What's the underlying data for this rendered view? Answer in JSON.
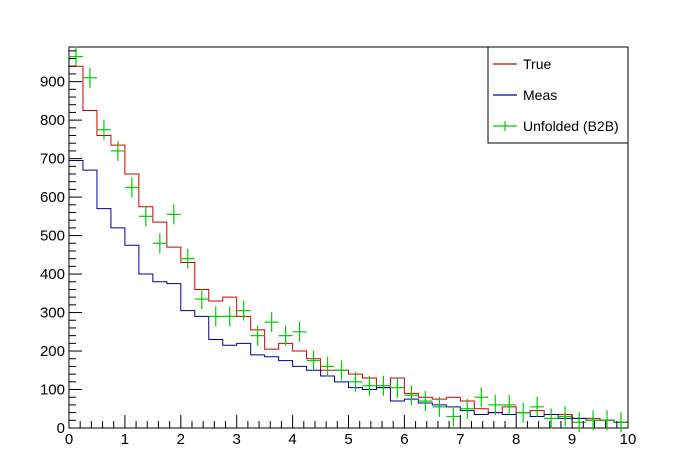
{
  "chart_data": {
    "type": "histogram",
    "xlim": [
      0,
      10
    ],
    "ylim": [
      0,
      990
    ],
    "x_ticks": [
      "0",
      "1",
      "2",
      "3",
      "4",
      "5",
      "6",
      "7",
      "8",
      "9",
      "10"
    ],
    "y_ticks": [
      "0",
      "100",
      "200",
      "300",
      "400",
      "500",
      "600",
      "700",
      "800",
      "900"
    ],
    "y_tick_values": [
      0,
      100,
      200,
      300,
      400,
      500,
      600,
      700,
      800,
      900
    ],
    "x_tick_values": [
      0,
      1,
      2,
      3,
      4,
      5,
      6,
      7,
      8,
      9,
      10
    ],
    "bin_width": 0.25,
    "legend_position": "top-right",
    "series": [
      {
        "name": "True",
        "kind": "step",
        "color": "#cc0000",
        "values": [
          940,
          825,
          760,
          735,
          660,
          575,
          535,
          470,
          430,
          360,
          330,
          340,
          290,
          255,
          205,
          220,
          200,
          180,
          150,
          150,
          140,
          130,
          105,
          130,
          90,
          80,
          75,
          80,
          70,
          50,
          40,
          55,
          40,
          45,
          35,
          35,
          25,
          25,
          20,
          15
        ]
      },
      {
        "name": "Meas",
        "kind": "step",
        "color": "#000099",
        "values": [
          695,
          670,
          570,
          520,
          475,
          400,
          380,
          375,
          305,
          290,
          230,
          215,
          220,
          190,
          185,
          175,
          160,
          150,
          135,
          120,
          105,
          100,
          105,
          70,
          75,
          65,
          60,
          55,
          45,
          35,
          40,
          35,
          40,
          30,
          35,
          25,
          25,
          20,
          20,
          15
        ]
      },
      {
        "name": "Unfolded (B2B)",
        "kind": "points",
        "color": "#00cc00",
        "values": [
          965,
          910,
          775,
          720,
          625,
          550,
          480,
          555,
          440,
          335,
          290,
          290,
          305,
          240,
          275,
          240,
          250,
          175,
          160,
          150,
          120,
          110,
          110,
          105,
          85,
          70,
          55,
          30,
          50,
          80,
          60,
          60,
          40,
          55,
          25,
          30,
          15,
          20,
          20,
          15
        ]
      }
    ]
  }
}
